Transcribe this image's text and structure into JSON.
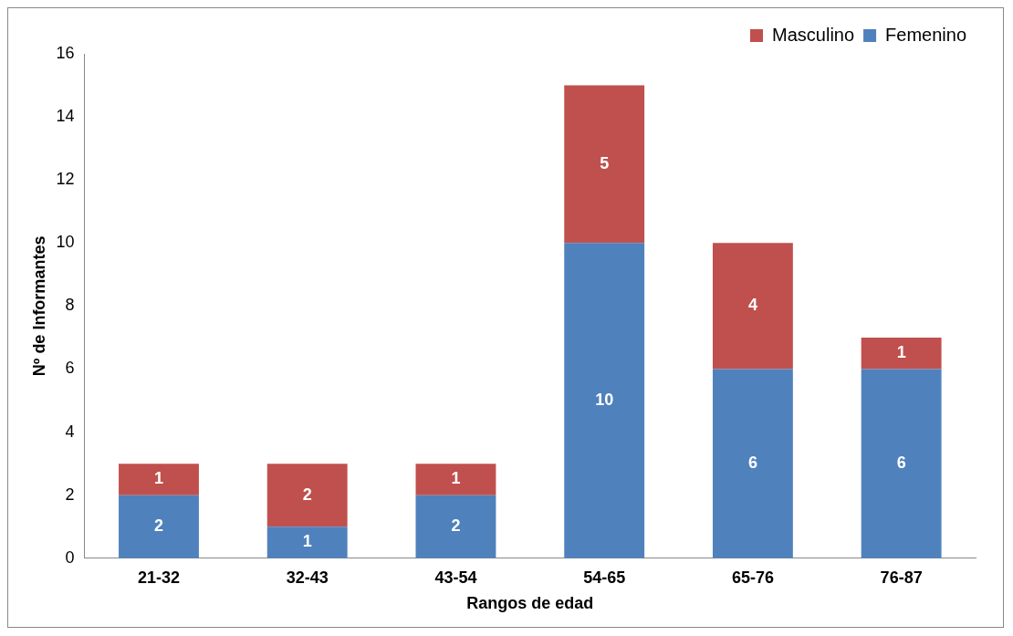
{
  "chart_data": {
    "type": "bar",
    "stacked": true,
    "xlabel": "Rangos de edad",
    "ylabel": "Nº de Informantes",
    "categories": [
      "21-32",
      "32-43",
      "43-54",
      "54-65",
      "65-76",
      "76-87"
    ],
    "series": [
      {
        "name": "Femenino",
        "color": "#4f81bd",
        "values": [
          2,
          1,
          2,
          10,
          6,
          6
        ]
      },
      {
        "name": "Masculino",
        "color": "#c0504d",
        "values": [
          1,
          2,
          1,
          5,
          4,
          1
        ]
      }
    ],
    "ylim": [
      0,
      16
    ],
    "yticks": [
      0,
      2,
      4,
      6,
      8,
      10,
      12,
      14,
      16
    ],
    "grid": false,
    "legend": "top right",
    "data_labels": true
  }
}
